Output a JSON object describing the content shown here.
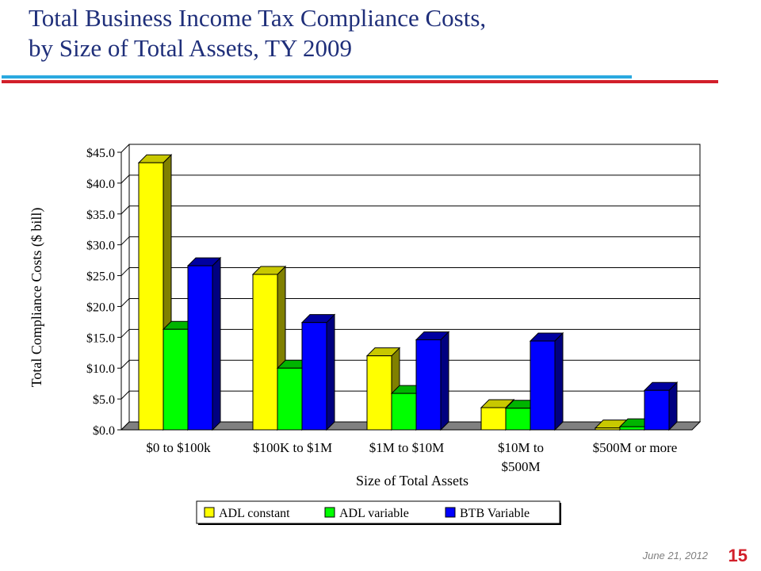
{
  "slide": {
    "title_line1": "Total Business  Income Tax Compliance Costs,",
    "title_line2": "by Size of Total Assets,  TY 2009",
    "footer_date": "June 21, 2012",
    "page_number": "15"
  },
  "colors": {
    "title": "#1f2f7a",
    "rule_blue": "#29a9e0",
    "rule_red": "#d21f2a",
    "series": [
      "#ffff00",
      "#00ff00",
      "#0000ff"
    ],
    "series_side": [
      "#808000",
      "#008000",
      "#000080"
    ],
    "series_top": [
      "#c8c800",
      "#00b400",
      "#0000a0"
    ]
  },
  "chart_data": {
    "type": "bar",
    "title": "",
    "xlabel": "Size of Total Assets",
    "ylabel": "Total Compliance Costs ($ bill)",
    "ylim": [
      0,
      45
    ],
    "yticks": [
      "$0.0",
      "$5.0",
      "$10.0",
      "$15.0",
      "$20.0",
      "$25.0",
      "$30.0",
      "$35.0",
      "$40.0",
      "$45.0"
    ],
    "grid": true,
    "legend_position": "bottom",
    "categories": [
      [
        "$0 to $100k"
      ],
      [
        "$100K to $1M"
      ],
      [
        "$1M to $10M"
      ],
      [
        "$10M to",
        "$500M"
      ],
      [
        "$500M or more"
      ]
    ],
    "series": [
      {
        "name": "ADL constant",
        "values": [
          43.3,
          25.2,
          12.0,
          3.6,
          0.3
        ]
      },
      {
        "name": "ADL variable",
        "values": [
          16.3,
          10.0,
          5.9,
          3.5,
          0.5
        ]
      },
      {
        "name": "BTB Variable",
        "values": [
          26.6,
          17.4,
          14.6,
          14.4,
          6.4
        ]
      }
    ]
  }
}
